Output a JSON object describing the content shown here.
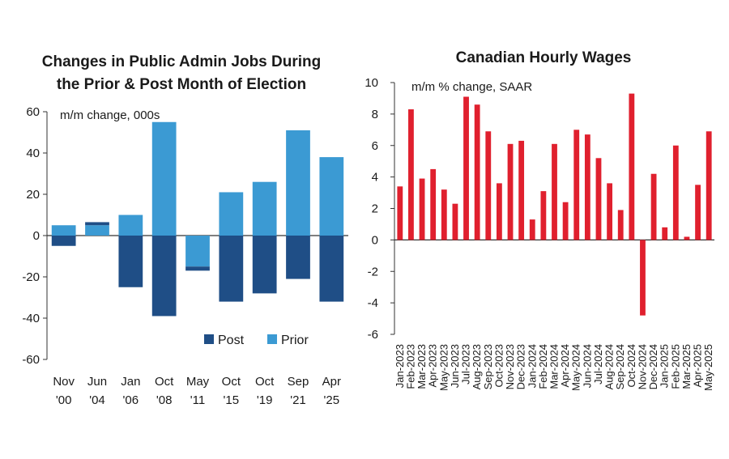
{
  "chart_data": [
    {
      "type": "bar",
      "stacked": true,
      "title_lines": [
        "Changes in Public Admin Jobs During",
        "the Prior & Post Month of Election"
      ],
      "subtitle": "m/m change, 000s",
      "categories": [
        [
          "Nov",
          "'00"
        ],
        [
          "Jun",
          "'04"
        ],
        [
          "Jan",
          "'06"
        ],
        [
          "Oct",
          "'08"
        ],
        [
          "May",
          "'11"
        ],
        [
          "Oct",
          "'15"
        ],
        [
          "Oct",
          "'19"
        ],
        [
          "Sep",
          "'21"
        ],
        [
          "Apr",
          "'25"
        ]
      ],
      "series": [
        {
          "name": "Post",
          "color": "#1f4e86",
          "values": [
            -5,
            6,
            -25,
            -39,
            -17,
            -32,
            -28,
            -21,
            -32
          ]
        },
        {
          "name": "Prior",
          "color": "#3b9ad3",
          "values": [
            5,
            5,
            10,
            55,
            -15,
            21,
            26,
            51,
            38
          ]
        }
      ],
      "ylim": [
        -60,
        60
      ],
      "yticks": [
        "-60",
        "-40",
        "-20",
        "0",
        "20",
        "40",
        "60"
      ],
      "legend_position": "bottom-right"
    },
    {
      "type": "bar",
      "title": "Canadian Hourly Wages",
      "subtitle": "m/m % change, SAAR",
      "color": "#e0202e",
      "categories": [
        "Jan-2023",
        "Feb-2023",
        "Mar-2023",
        "Apr-2023",
        "May-2023",
        "Jun-2023",
        "Jul-2023",
        "Aug-2023",
        "Sep-2023",
        "Oct-2023",
        "Nov-2023",
        "Dec-2023",
        "Jan-2024",
        "Feb-2024",
        "Mar-2024",
        "Apr-2024",
        "May-2024",
        "Jun-2024",
        "Jul-2024",
        "Aug-2024",
        "Sep-2024",
        "Oct-2024",
        "Nov-2024",
        "Dec-2024",
        "Jan-2025",
        "Feb-2025",
        "Mar-2025",
        "Apr-2025",
        "May-2025"
      ],
      "values": [
        3.4,
        8.3,
        3.9,
        4.5,
        3.2,
        2.3,
        9.1,
        8.6,
        6.9,
        3.6,
        6.1,
        6.3,
        1.3,
        3.1,
        6.1,
        2.4,
        7.0,
        6.7,
        5.2,
        3.6,
        1.9,
        9.3,
        -4.8,
        4.2,
        0.8,
        6.0,
        0.2,
        3.5,
        6.9
      ],
      "ylim": [
        -6,
        10
      ],
      "yticks": [
        "-6",
        "-4",
        "-2",
        "0",
        "2",
        "4",
        "6",
        "8",
        "10"
      ]
    }
  ]
}
